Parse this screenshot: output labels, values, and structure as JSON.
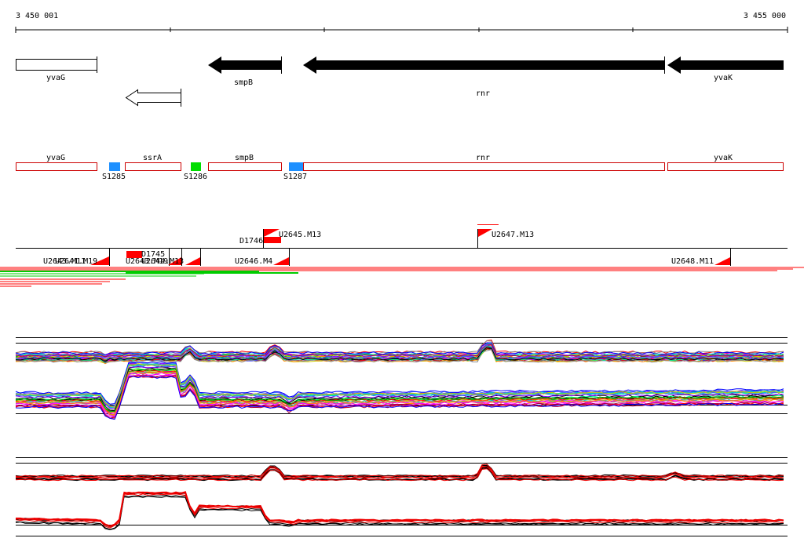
{
  "coords": {
    "start": "3 450 001",
    "end": "3 455 000"
  },
  "genes": [
    {
      "name": "yvaG",
      "strand": "+",
      "style": "open"
    },
    {
      "name": "",
      "strand": "-",
      "style": "open"
    },
    {
      "name": "smpB",
      "strand": "-",
      "style": "filled"
    },
    {
      "name": "rnr",
      "strand": "-",
      "style": "filled"
    },
    {
      "name": "yvaK",
      "strand": "-",
      "style": "filled"
    }
  ],
  "regions": [
    {
      "name": "yvaG"
    },
    {
      "name": "ssrA"
    },
    {
      "name": "smpB"
    },
    {
      "name": "rnr"
    },
    {
      "name": "yvaK"
    }
  ],
  "segments": [
    {
      "name": "S1285",
      "color": "#1e90ff"
    },
    {
      "name": "S1286",
      "color": "#00dd00"
    },
    {
      "name": "S1287",
      "color": "#1e90ff"
    }
  ],
  "features_upper": [
    {
      "name": "U2645.M13"
    },
    {
      "name": "D1746"
    },
    {
      "name": "U2647.M13"
    }
  ],
  "features_lower": [
    {
      "name": "U2643.M11"
    },
    {
      "name": "U2641.M19"
    },
    {
      "name": "D1745"
    },
    {
      "name": "U2643.M19"
    },
    {
      "name": "U2644.M13"
    },
    {
      "name": "U2646.M4"
    },
    {
      "name": "U2648.M11"
    }
  ],
  "colors": {
    "feature": "#ff0000",
    "region_border": "#cc0000",
    "gene_filled": "#000000"
  }
}
